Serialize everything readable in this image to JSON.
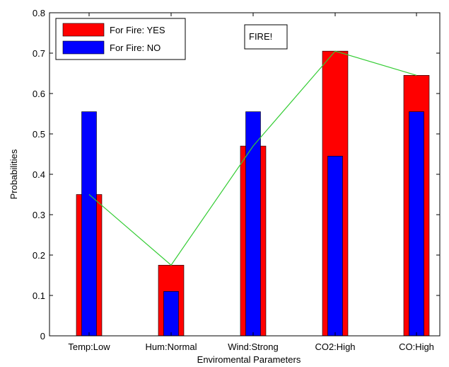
{
  "chart_data": {
    "type": "bar",
    "categories": [
      "Temp:Low",
      "Hum:Normal",
      "Wind:Strong",
      "CO2:High",
      "CO:High"
    ],
    "series": [
      {
        "name": "For Fire: YES",
        "values": [
          0.35,
          0.175,
          0.47,
          0.705,
          0.645
        ],
        "color": "#ff0000"
      },
      {
        "name": "For Fire: NO",
        "values": [
          0.555,
          0.11,
          0.555,
          0.445,
          0.555
        ],
        "color": "#0000ff"
      }
    ],
    "line": {
      "values": [
        0.35,
        0.175,
        0.47,
        0.705,
        0.645
      ],
      "color": "#33cc33"
    },
    "xlabel": "Enviromental Parameters",
    "ylabel": "Probabilities",
    "ylim": [
      0,
      0.8
    ],
    "yticks": [
      "0",
      "0.1",
      "0.2",
      "0.3",
      "0.4",
      "0.5",
      "0.6",
      "0.7",
      "0.8"
    ],
    "annotation": "FIRE!",
    "legend_placement": "top-left",
    "grid": false
  }
}
